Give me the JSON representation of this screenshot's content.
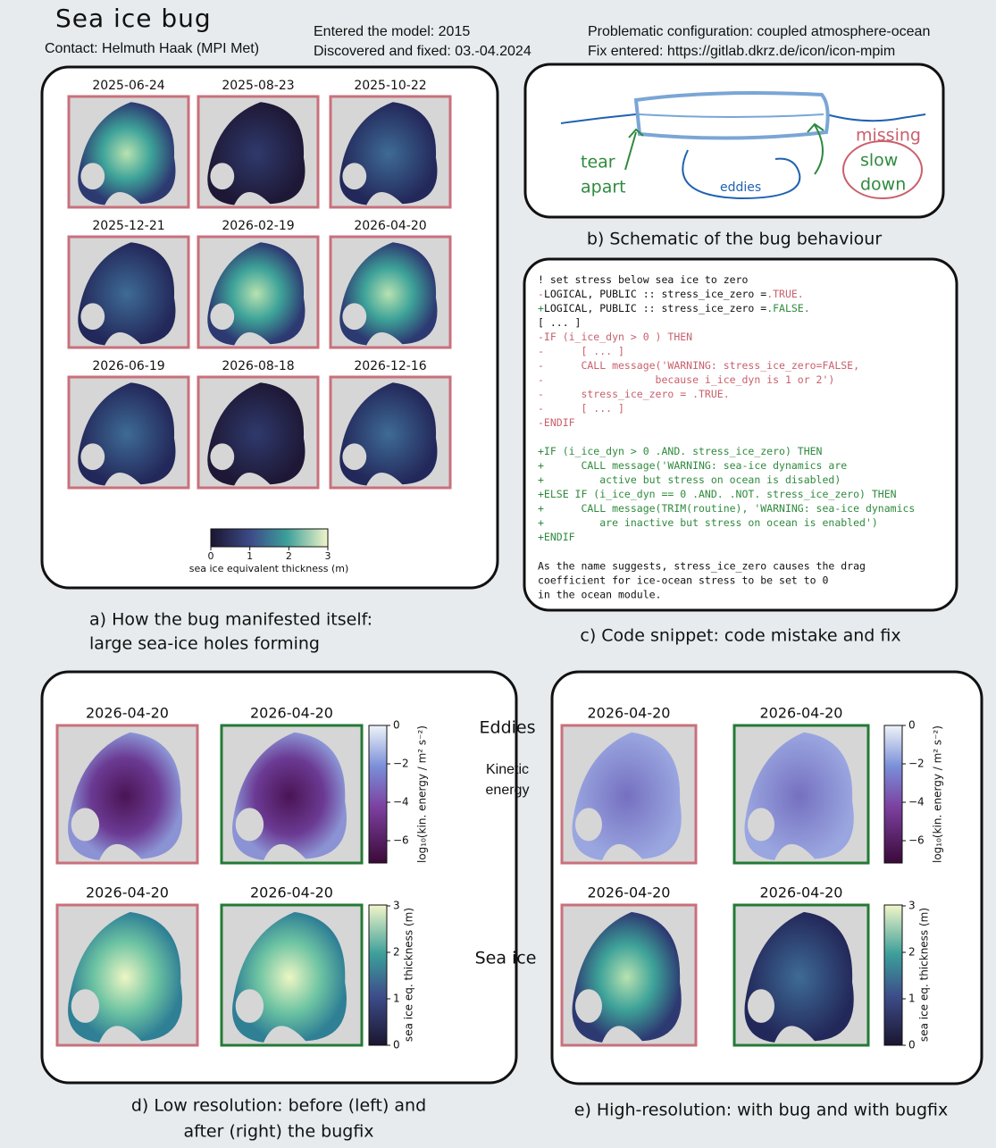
{
  "header": {
    "title": "Sea ice bug",
    "contact": "Contact: Helmuth Haak (MPI Met)",
    "entered": "Entered the model: 2015",
    "discovered": "Discovered and fixed: 03.-04.2024",
    "configuration": "Problematic configuration: coupled atmosphere-ocean",
    "fix": "Fix entered: https://gitlab.dkrz.de/icon/icon-mpim"
  },
  "panel_a": {
    "dates": [
      "2025-06-24",
      "2025-08-23",
      "2025-10-22",
      "2025-12-21",
      "2026-02-19",
      "2026-04-20",
      "2026-06-19",
      "2026-08-18",
      "2026-12-16"
    ],
    "colorbar_ticks": [
      "0",
      "1",
      "2",
      "3"
    ],
    "colorbar_label": "sea ice equivalent thickness (m)",
    "caption": [
      "a) How the bug manifested itself:",
      "large sea-ice holes forming"
    ]
  },
  "panel_b": {
    "labels": {
      "tear": "tear",
      "apart": "apart",
      "eddies": "eddies",
      "missing": "missing",
      "slow": "slow",
      "down": "down"
    },
    "caption": "b) Schematic of the bug behaviour"
  },
  "panel_c": {
    "blocks": [
      [
        [
          {
            "text": "! set stress below sea ice to zero",
            "color": "#111111"
          }
        ],
        [
          {
            "text": "-",
            "color": "#c9606c"
          },
          {
            "text": "LOGICAL, PUBLIC :: stress_ice_zero =",
            "color": "#111111"
          },
          {
            "text": ".TRUE.",
            "color": "#c9606c"
          }
        ],
        [
          {
            "text": "+",
            "color": "#2f8a3e"
          },
          {
            "text": "LOGICAL, PUBLIC :: stress_ice_zero =",
            "color": "#111111"
          },
          {
            "text": ".FALSE.",
            "color": "#2f8a3e"
          }
        ],
        [
          {
            "text": "[ ... ]",
            "color": "#111111"
          }
        ],
        [
          {
            "text": "-IF (i_ice_dyn > 0 ) THEN",
            "color": "#c9606c"
          }
        ],
        [
          {
            "text": "-      [ ... ]",
            "color": "#c9606c"
          }
        ],
        [
          {
            "text": "-      CALL message('WARNING: stress_ice_zero=FALSE,",
            "color": "#c9606c"
          }
        ],
        [
          {
            "text": "-                  because i_ice_dyn is 1 or 2')",
            "color": "#c9606c"
          }
        ],
        [
          {
            "text": "-      stress_ice_zero = .TRUE.",
            "color": "#c9606c"
          }
        ],
        [
          {
            "text": "-      [ ... ]",
            "color": "#c9606c"
          }
        ],
        [
          {
            "text": "-ENDIF",
            "color": "#c9606c"
          }
        ]
      ],
      [
        [
          {
            "text": "+IF (i_ice_dyn > 0 .AND. stress_ice_zero) THEN",
            "color": "#2f8a3e"
          }
        ],
        [
          {
            "text": "+      CALL message('WARNING: sea-ice dynamics are",
            "color": "#2f8a3e"
          }
        ],
        [
          {
            "text": "+         active but stress on ocean is disabled)",
            "color": "#2f8a3e"
          }
        ],
        [
          {
            "text": "+ELSE IF (i_ice_dyn == 0 .AND. .NOT. stress_ice_zero) THEN",
            "color": "#2f8a3e"
          }
        ],
        [
          {
            "text": "+      CALL message(TRIM(routine), 'WARNING: sea-ice dynamics",
            "color": "#2f8a3e"
          }
        ],
        [
          {
            "text": "+         are inactive but stress on ocean is enabled')",
            "color": "#2f8a3e"
          }
        ],
        [
          {
            "text": "+ENDIF",
            "color": "#2f8a3e"
          }
        ]
      ]
    ],
    "note": [
      "As the name suggests, stress_ice_zero causes the drag",
      "coefficient for ice-ocean stress to be set to 0",
      "in the ocean module."
    ],
    "caption": "c) Code snippet: code mistake and fix"
  },
  "panel_d": {
    "dates": [
      "2026-04-20",
      "2026-04-20",
      "2026-04-20",
      "2026-04-20"
    ],
    "ke_ticks": [
      "0",
      "−2",
      "−4",
      "−6"
    ],
    "ke_label": "log₁₀(kin. energy / m² s⁻²)",
    "thickness_ticks": [
      "0",
      "1",
      "2",
      "3"
    ],
    "thickness_label": "sea ice eq. thickness (m)",
    "caption": [
      "d) Low resolution: before (left) and",
      "after (right) the bugfix"
    ]
  },
  "panel_e": {
    "row_labels": {
      "eddies": "Eddies",
      "kinetic": "Kinetic",
      "energy": "energy",
      "sea_ice": "Sea ice"
    },
    "dates": [
      "2026-04-20",
      "2026-04-20",
      "2026-04-20",
      "2026-04-20"
    ],
    "ke_ticks": [
      "0",
      "−2",
      "−4",
      "−6"
    ],
    "ke_label": "log₁₀(kin. energy / m² s⁻²)",
    "thickness_ticks": [
      "0",
      "1",
      "2",
      "3"
    ],
    "thickness_label": "sea ice eq. thickness (m)",
    "caption": "e) High-resolution: with bug and with bugfix"
  }
}
